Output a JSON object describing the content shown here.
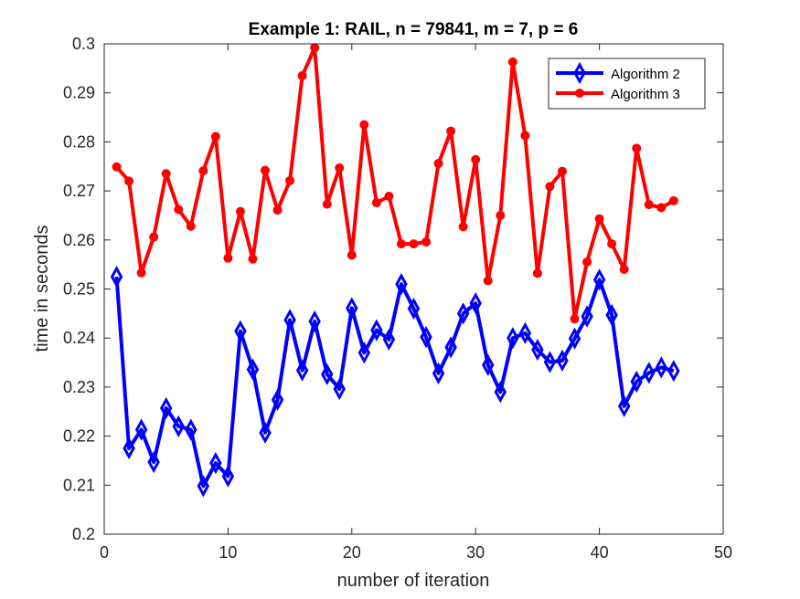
{
  "chart_data": {
    "type": "line",
    "title": "Example 1: RAIL, n = 79841, m = 7, p = 6",
    "xlabel": "number of iteration",
    "ylabel": "time in seconds",
    "xlim": [
      0,
      50
    ],
    "ylim": [
      0.2,
      0.3
    ],
    "xticks": [
      "0",
      "10",
      "20",
      "30",
      "40",
      "50"
    ],
    "yticks": [
      "0.2",
      "0.21",
      "0.22",
      "0.23",
      "0.24",
      "0.25",
      "0.26",
      "0.27",
      "0.28",
      "0.29",
      "0.3"
    ],
    "grid": false,
    "legend_position": "top-right",
    "x": [
      1,
      2,
      3,
      4,
      5,
      6,
      7,
      8,
      9,
      10,
      11,
      12,
      13,
      14,
      15,
      16,
      17,
      18,
      19,
      20,
      21,
      22,
      23,
      24,
      25,
      26,
      27,
      28,
      29,
      30,
      31,
      32,
      33,
      34,
      35,
      36,
      37,
      38,
      39,
      40,
      41,
      42,
      43,
      44,
      45,
      46
    ],
    "series": [
      {
        "name": "Algorithm 2",
        "color": "#0000ff",
        "marker": "diamond",
        "values": [
          0.2525,
          0.2175,
          0.2213,
          0.2147,
          0.2257,
          0.222,
          0.2213,
          0.2098,
          0.2145,
          0.2118,
          0.2414,
          0.2336,
          0.2207,
          0.2274,
          0.2437,
          0.2334,
          0.2434,
          0.2326,
          0.2296,
          0.2461,
          0.237,
          0.2416,
          0.2397,
          0.251,
          0.246,
          0.2402,
          0.2328,
          0.2381,
          0.245,
          0.2471,
          0.2345,
          0.229,
          0.24,
          0.241,
          0.2376,
          0.2351,
          0.2354,
          0.2399,
          0.2444,
          0.2519,
          0.2447,
          0.2261,
          0.2311,
          0.2329,
          0.234,
          0.2333
        ]
      },
      {
        "name": "Algorithm 3",
        "color": "#ff0000",
        "marker": "circle",
        "values": [
          0.2749,
          0.272,
          0.2533,
          0.2606,
          0.2735,
          0.2662,
          0.2628,
          0.2741,
          0.2811,
          0.2563,
          0.2658,
          0.2561,
          0.2742,
          0.2661,
          0.2721,
          0.2935,
          0.2992,
          0.2673,
          0.2747,
          0.2569,
          0.2835,
          0.2676,
          0.2689,
          0.2592,
          0.2592,
          0.2596,
          0.2756,
          0.2822,
          0.2627,
          0.2764,
          0.2517,
          0.265,
          0.2963,
          0.2813,
          0.2532,
          0.2709,
          0.274,
          0.2439,
          0.2555,
          0.2643,
          0.2592,
          0.254,
          0.2787,
          0.2672,
          0.2666,
          0.268
        ]
      }
    ]
  }
}
